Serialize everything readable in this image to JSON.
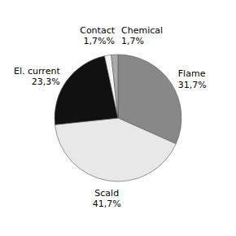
{
  "chart_data": {
    "type": "pie",
    "categories": [
      "Flame",
      "Scald",
      "El. current",
      "Contact",
      "Chemical"
    ],
    "values": [
      31.7,
      41.7,
      23.3,
      1.7,
      1.7
    ],
    "value_labels": [
      "31,7%",
      "41,7%",
      "23,3%",
      "1,7%%",
      "1,7%"
    ],
    "colors": [
      "#888888",
      "#e8e8e8",
      "#111111",
      "#f5f5f5",
      "#aaaaaa"
    ],
    "data_labels": true
  }
}
